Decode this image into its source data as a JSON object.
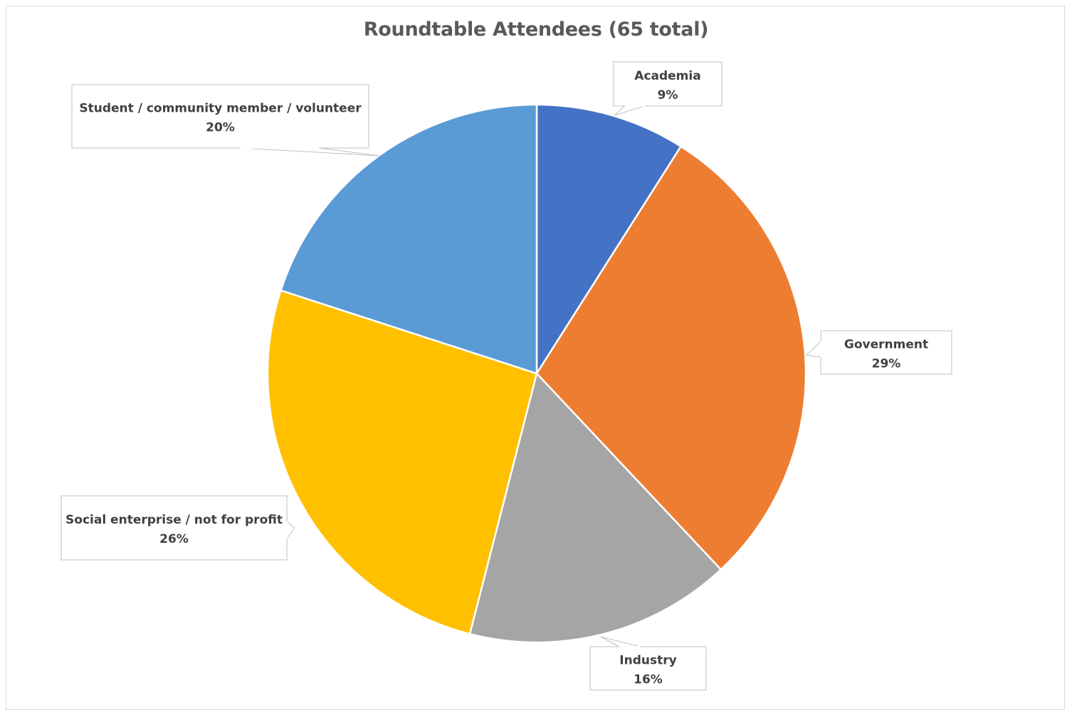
{
  "chart_data": {
    "type": "pie",
    "title": "Roundtable Attendees (65 total)",
    "slices": [
      {
        "label": "Academia",
        "value": 9,
        "value_label": "9%",
        "color": "#4472C4"
      },
      {
        "label": "Government",
        "value": 29,
        "value_label": "29%",
        "color": "#ED7D31"
      },
      {
        "label": "Industry",
        "value": 16,
        "value_label": "16%",
        "color": "#A5A5A5"
      },
      {
        "label": "Social enterprise / not for profit",
        "value": 26,
        "value_label": "26%",
        "color": "#FFC000"
      },
      {
        "label": "Student / community member / volunteer",
        "value": 20,
        "value_label": "20%",
        "color": "#5B9BD5"
      }
    ],
    "legend": "none",
    "data_labels": "callouts"
  }
}
